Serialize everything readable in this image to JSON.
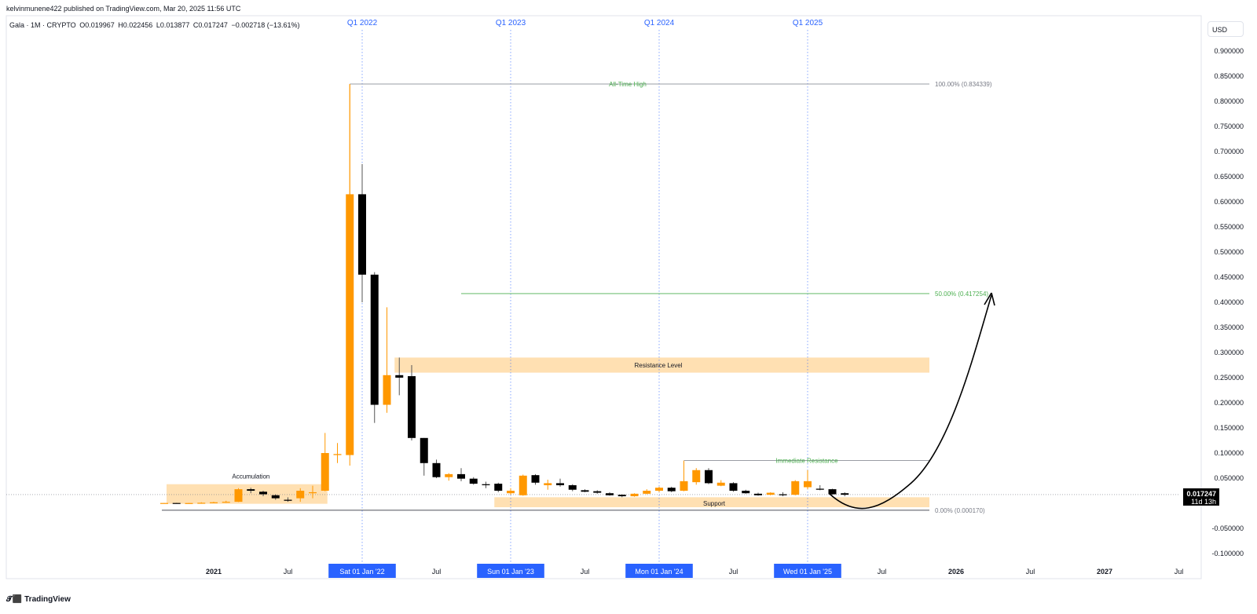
{
  "header": {
    "published_by": "kelvinmunene422 published on TradingView.com, Mar 20, 2025 11:56 UTC"
  },
  "legend": {
    "symbol": "Gala · 1M · CRYPTO",
    "open": "O0.019967",
    "high": "H0.022456",
    "low": "L0.013877",
    "close": "C0.017247",
    "change": "−0.002718 (−13.61%)"
  },
  "currency_button": "USD",
  "footer": {
    "brand": "TradingView",
    "logo_icon": "tradingview-logo-icon"
  },
  "colors": {
    "bull": "#ff9800",
    "bear": "#000000",
    "zone": "#ffe0b2",
    "quarter_line": "#2962ff",
    "green_text": "#4caf50",
    "gray_line": "#787b86"
  },
  "chart_data": {
    "type": "candlestick",
    "ylim": [
      -0.11,
      0.92
    ],
    "y_ticks": [
      "0.900000",
      "0.850000",
      "0.800000",
      "0.750000",
      "0.700000",
      "0.650000",
      "0.600000",
      "0.550000",
      "0.500000",
      "0.450000",
      "0.400000",
      "0.350000",
      "0.300000",
      "0.250000",
      "0.200000",
      "0.150000",
      "0.100000",
      "0.050000",
      "-0.050000",
      "-0.100000"
    ],
    "y_tick_values": [
      0.9,
      0.85,
      0.8,
      0.75,
      0.7,
      0.65,
      0.6,
      0.55,
      0.5,
      0.45,
      0.4,
      0.35,
      0.3,
      0.25,
      0.2,
      0.15,
      0.1,
      0.05,
      -0.05,
      -0.1
    ],
    "x_labels": [
      {
        "text": "2021",
        "date": "2021-01-01",
        "highlight": false
      },
      {
        "text": "Jul",
        "date": "2021-07-01",
        "highlight": false
      },
      {
        "text": "Sat 01 Jan '22",
        "date": "2022-01-01",
        "highlight": true
      },
      {
        "text": "Jul",
        "date": "2022-07-01",
        "highlight": false
      },
      {
        "text": "Sun 01 Jan '23",
        "date": "2023-01-01",
        "highlight": true
      },
      {
        "text": "Jul",
        "date": "2023-07-01",
        "highlight": false
      },
      {
        "text": "Mon 01 Jan '24",
        "date": "2024-01-01",
        "highlight": true
      },
      {
        "text": "Jul",
        "date": "2024-07-01",
        "highlight": false
      },
      {
        "text": "Wed 01 Jan '25",
        "date": "2025-01-01",
        "highlight": true
      },
      {
        "text": "Jul",
        "date": "2025-07-01",
        "highlight": false
      },
      {
        "text": "2026",
        "date": "2026-01-01",
        "highlight": false
      },
      {
        "text": "Jul",
        "date": "2026-07-01",
        "highlight": false
      },
      {
        "text": "2027",
        "date": "2027-01-01",
        "highlight": false
      },
      {
        "text": "Jul",
        "date": "2027-07-01",
        "highlight": false
      }
    ],
    "quarter_markers": [
      {
        "label": "Q1 2022",
        "date": "2022-01-01"
      },
      {
        "label": "Q1 2023",
        "date": "2023-01-01"
      },
      {
        "label": "Q1 2024",
        "date": "2024-01-01"
      },
      {
        "label": "Q1 2025",
        "date": "2025-01-01"
      }
    ],
    "candles": [
      {
        "date": "2020-09",
        "o": 0.0005,
        "h": 0.0008,
        "l": 0.0002,
        "c": 0.0006
      },
      {
        "date": "2020-10",
        "o": 0.0006,
        "h": 0.0009,
        "l": 0.0003,
        "c": 0.0004
      },
      {
        "date": "2020-11",
        "o": 0.0004,
        "h": 0.0008,
        "l": 0.0002,
        "c": 0.0005
      },
      {
        "date": "2020-12",
        "o": 0.0005,
        "h": 0.002,
        "l": 0.0003,
        "c": 0.001
      },
      {
        "date": "2021-01",
        "o": 0.001,
        "h": 0.003,
        "l": 0.0005,
        "c": 0.002
      },
      {
        "date": "2021-02",
        "o": 0.002,
        "h": 0.005,
        "l": 0.001,
        "c": 0.003
      },
      {
        "date": "2021-03",
        "o": 0.003,
        "h": 0.03,
        "l": 0.0025,
        "c": 0.028
      },
      {
        "date": "2021-04",
        "o": 0.028,
        "h": 0.031,
        "l": 0.02,
        "c": 0.025
      },
      {
        "date": "2021-05",
        "o": 0.023,
        "h": 0.025,
        "l": 0.014,
        "c": 0.018
      },
      {
        "date": "2021-06",
        "o": 0.016,
        "h": 0.018,
        "l": 0.007,
        "c": 0.01
      },
      {
        "date": "2021-07",
        "o": 0.007,
        "h": 0.012,
        "l": 0.003,
        "c": 0.005
      },
      {
        "date": "2021-08",
        "o": 0.01,
        "h": 0.03,
        "l": 0.003,
        "c": 0.025
      },
      {
        "date": "2021-09",
        "o": 0.02,
        "h": 0.035,
        "l": 0.01,
        "c": 0.022
      },
      {
        "date": "2021-10",
        "o": 0.025,
        "h": 0.14,
        "l": 0.024,
        "c": 0.1
      },
      {
        "date": "2021-11",
        "o": 0.096,
        "h": 0.12,
        "l": 0.08,
        "c": 0.098
      },
      {
        "date": "2021-12",
        "o": 0.096,
        "h": 0.834,
        "l": 0.075,
        "c": 0.615
      },
      {
        "date": "2022-01",
        "o": 0.615,
        "h": 0.675,
        "l": 0.4,
        "c": 0.455
      },
      {
        "date": "2022-02",
        "o": 0.455,
        "h": 0.46,
        "l": 0.16,
        "c": 0.196
      },
      {
        "date": "2022-03",
        "o": 0.196,
        "h": 0.39,
        "l": 0.18,
        "c": 0.255
      },
      {
        "date": "2022-04",
        "o": 0.255,
        "h": 0.29,
        "l": 0.215,
        "c": 0.25
      },
      {
        "date": "2022-05",
        "o": 0.253,
        "h": 0.275,
        "l": 0.125,
        "c": 0.13
      },
      {
        "date": "2022-06",
        "o": 0.13,
        "h": 0.13,
        "l": 0.055,
        "c": 0.08
      },
      {
        "date": "2022-07",
        "o": 0.08,
        "h": 0.087,
        "l": 0.05,
        "c": 0.052
      },
      {
        "date": "2022-08",
        "o": 0.052,
        "h": 0.06,
        "l": 0.045,
        "c": 0.058
      },
      {
        "date": "2022-09",
        "o": 0.058,
        "h": 0.07,
        "l": 0.044,
        "c": 0.049
      },
      {
        "date": "2022-10",
        "o": 0.049,
        "h": 0.052,
        "l": 0.037,
        "c": 0.039
      },
      {
        "date": "2022-11",
        "o": 0.038,
        "h": 0.043,
        "l": 0.03,
        "c": 0.036
      },
      {
        "date": "2022-12",
        "o": 0.039,
        "h": 0.041,
        "l": 0.022,
        "c": 0.025
      },
      {
        "date": "2023-01",
        "o": 0.02,
        "h": 0.03,
        "l": 0.017,
        "c": 0.025
      },
      {
        "date": "2023-02",
        "o": 0.016,
        "h": 0.057,
        "l": 0.015,
        "c": 0.055
      },
      {
        "date": "2023-03",
        "o": 0.056,
        "h": 0.058,
        "l": 0.037,
        "c": 0.041
      },
      {
        "date": "2023-04",
        "o": 0.036,
        "h": 0.047,
        "l": 0.027,
        "c": 0.04
      },
      {
        "date": "2023-05",
        "o": 0.04,
        "h": 0.049,
        "l": 0.033,
        "c": 0.036
      },
      {
        "date": "2023-06",
        "o": 0.036,
        "h": 0.038,
        "l": 0.024,
        "c": 0.027
      },
      {
        "date": "2023-07",
        "o": 0.026,
        "h": 0.028,
        "l": 0.022,
        "c": 0.023
      },
      {
        "date": "2023-08",
        "o": 0.024,
        "h": 0.026,
        "l": 0.019,
        "c": 0.021
      },
      {
        "date": "2023-09",
        "o": 0.02,
        "h": 0.022,
        "l": 0.015,
        "c": 0.016
      },
      {
        "date": "2023-10",
        "o": 0.017,
        "h": 0.018,
        "l": 0.012,
        "c": 0.014
      },
      {
        "date": "2023-11",
        "o": 0.014,
        "h": 0.02,
        "l": 0.013,
        "c": 0.019
      },
      {
        "date": "2023-12",
        "o": 0.019,
        "h": 0.028,
        "l": 0.018,
        "c": 0.025
      },
      {
        "date": "2024-01",
        "o": 0.025,
        "h": 0.033,
        "l": 0.022,
        "c": 0.031
      },
      {
        "date": "2024-02",
        "o": 0.031,
        "h": 0.033,
        "l": 0.022,
        "c": 0.024
      },
      {
        "date": "2024-03",
        "o": 0.025,
        "h": 0.085,
        "l": 0.024,
        "c": 0.044
      },
      {
        "date": "2024-04",
        "o": 0.042,
        "h": 0.07,
        "l": 0.037,
        "c": 0.066
      },
      {
        "date": "2024-05",
        "o": 0.066,
        "h": 0.07,
        "l": 0.038,
        "c": 0.04
      },
      {
        "date": "2024-06",
        "o": 0.035,
        "h": 0.046,
        "l": 0.034,
        "c": 0.041
      },
      {
        "date": "2024-07",
        "o": 0.04,
        "h": 0.042,
        "l": 0.023,
        "c": 0.025
      },
      {
        "date": "2024-08",
        "o": 0.025,
        "h": 0.027,
        "l": 0.019,
        "c": 0.02
      },
      {
        "date": "2024-09",
        "o": 0.019,
        "h": 0.021,
        "l": 0.015,
        "c": 0.016
      },
      {
        "date": "2024-10",
        "o": 0.017,
        "h": 0.022,
        "l": 0.016,
        "c": 0.021
      },
      {
        "date": "2024-11",
        "o": 0.018,
        "h": 0.022,
        "l": 0.014,
        "c": 0.016
      },
      {
        "date": "2024-12",
        "o": 0.017,
        "h": 0.046,
        "l": 0.016,
        "c": 0.044
      },
      {
        "date": "2025-01",
        "o": 0.032,
        "h": 0.066,
        "l": 0.028,
        "c": 0.044
      },
      {
        "date": "2025-02",
        "o": 0.029,
        "h": 0.036,
        "l": 0.026,
        "c": 0.027
      },
      {
        "date": "2025-03",
        "o": 0.028,
        "h": 0.029,
        "l": 0.017,
        "c": 0.018
      },
      {
        "date": "2025-04",
        "o": 0.02,
        "h": 0.022,
        "l": 0.014,
        "c": 0.017
      }
    ],
    "annotations": {
      "all_time_high": {
        "label": "All-Time High",
        "value": 0.834339,
        "fib_label": "100.00% (0.834339)"
      },
      "fib_50": {
        "label": "50.00% (0.417254)",
        "value": 0.417254
      },
      "fib_0": {
        "label": "0.00% (0.000170)",
        "value": 0.00017
      },
      "resistance_level": {
        "label": "Resistance Level",
        "from": 0.26,
        "to": 0.29
      },
      "immediate_resistance": {
        "label": "Immediate Resistance",
        "value": 0.085
      },
      "support": {
        "label": "Support",
        "from": 0.0,
        "to": 0.012
      },
      "accumulation": {
        "label": "Accumulation",
        "from": -0.001,
        "to": 0.038
      }
    },
    "last_price": {
      "value": "0.017247",
      "countdown": "11d 13h"
    }
  }
}
